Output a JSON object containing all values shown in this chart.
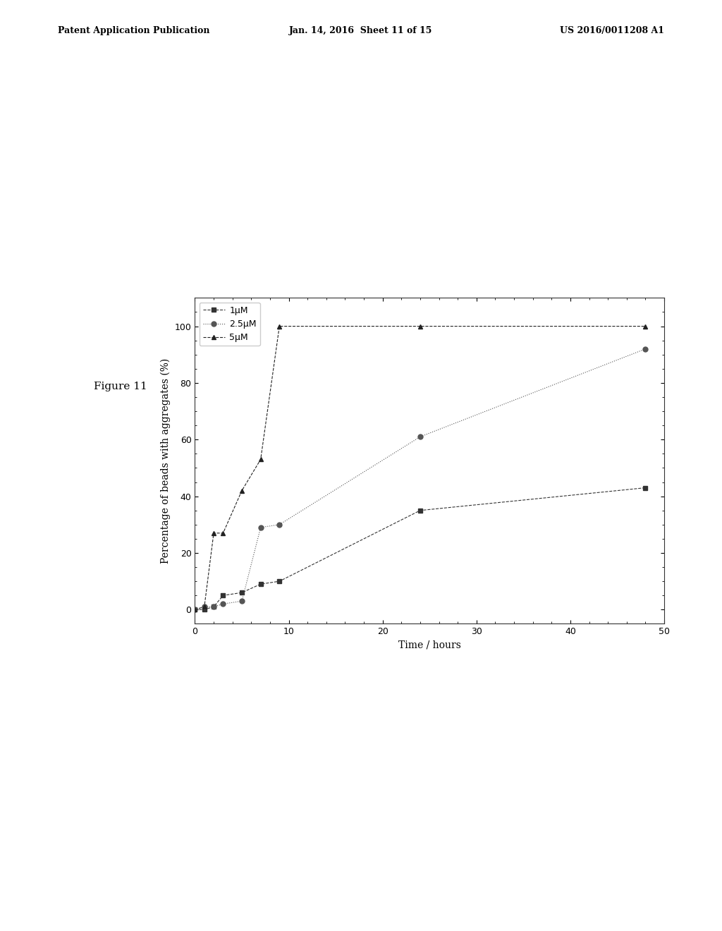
{
  "series_1uM": {
    "x": [
      0,
      1,
      2,
      3,
      5,
      7,
      9,
      24,
      48
    ],
    "y": [
      0,
      0,
      1,
      5,
      6,
      9,
      10,
      35,
      43
    ],
    "label": "1μM",
    "marker": "s",
    "color": "#333333",
    "linestyle": "--"
  },
  "series_2p5uM": {
    "x": [
      0,
      1,
      2,
      3,
      5,
      7,
      9,
      24,
      48
    ],
    "y": [
      0,
      1,
      1,
      2,
      3,
      29,
      30,
      61,
      92
    ],
    "label": "2.5μM",
    "marker": "o",
    "color": "#555555",
    "linestyle": ":"
  },
  "series_5uM": {
    "x": [
      0,
      1,
      2,
      3,
      5,
      7,
      9,
      24,
      48
    ],
    "y": [
      0,
      1,
      27,
      27,
      42,
      53,
      100,
      100,
      100
    ],
    "label": "5μM",
    "marker": "^",
    "color": "#222222",
    "linestyle": "--"
  },
  "xlabel": "Time / hours",
  "ylabel": "Percentage of beads with aggregates (%)",
  "xlim": [
    0,
    50
  ],
  "ylim": [
    -5,
    110
  ],
  "xticks": [
    0,
    10,
    20,
    30,
    40,
    50
  ],
  "yticks": [
    0,
    20,
    40,
    60,
    80,
    100
  ],
  "header_left": "Patent Application Publication",
  "header_center": "Jan. 14, 2016  Sheet 11 of 15",
  "header_right": "US 2016/0011208 A1",
  "figure_label": "Figure 11",
  "background_color": "#ffffff"
}
